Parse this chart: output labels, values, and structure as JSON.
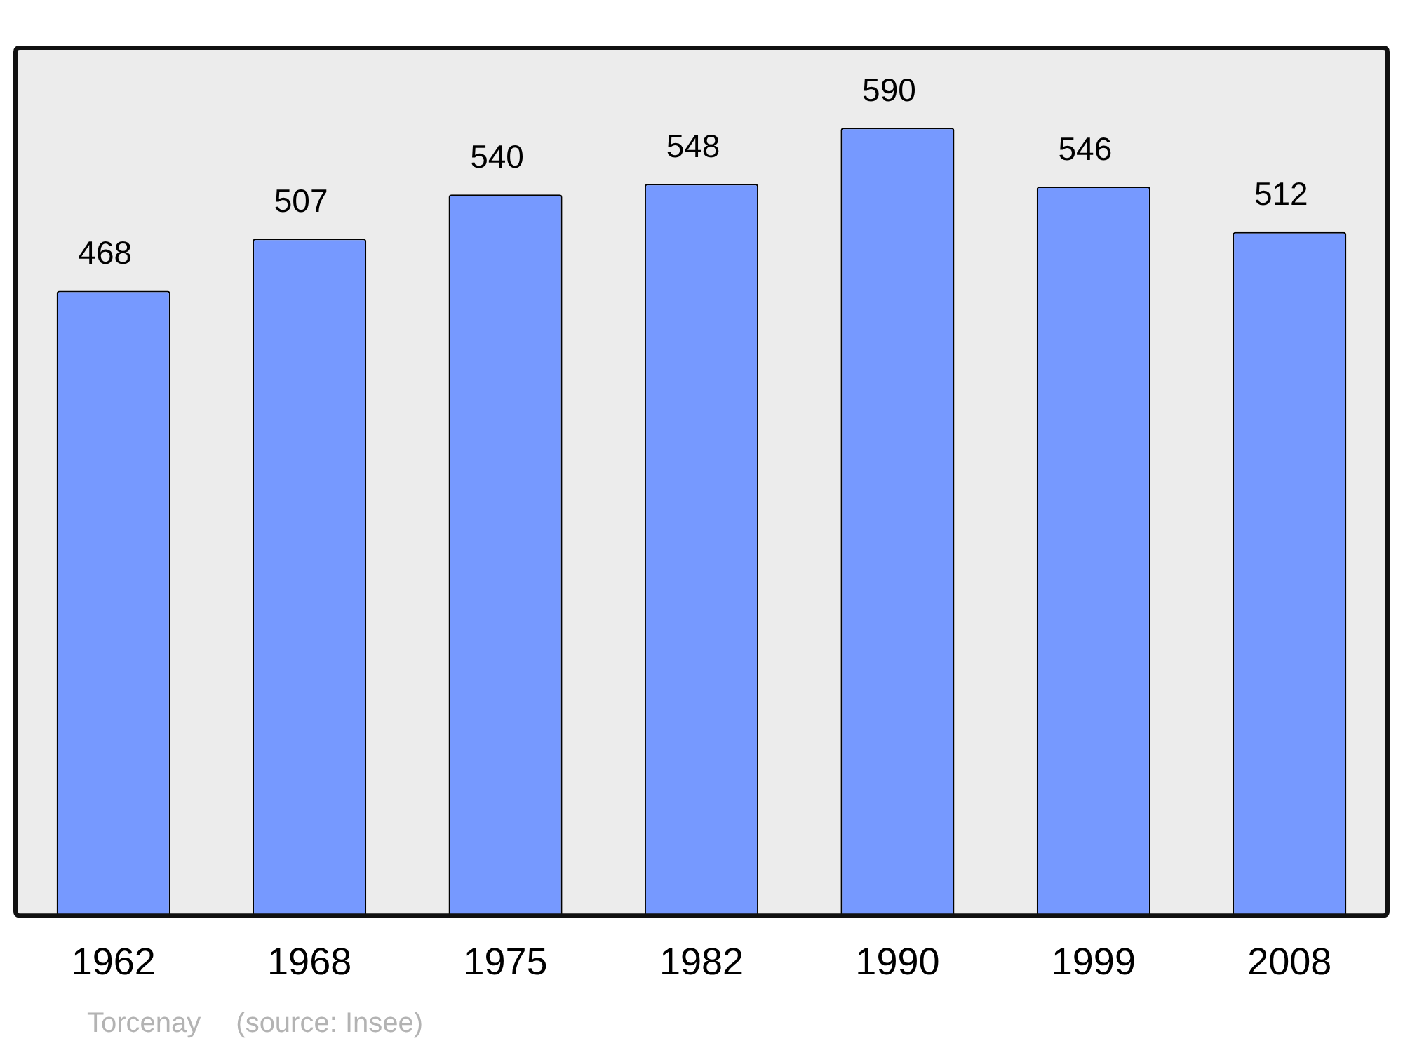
{
  "chart_data": {
    "type": "bar",
    "categories": [
      "1962",
      "1968",
      "1975",
      "1982",
      "1990",
      "1999",
      "2008"
    ],
    "values": [
      468,
      507,
      540,
      548,
      590,
      546,
      512
    ],
    "color": "#7699ff",
    "ylim": [
      0,
      650
    ],
    "tick_labels": "x",
    "legend": false,
    "data_labels": true,
    "annotations": [
      "Torcenay",
      "(source: Insee)"
    ]
  }
}
